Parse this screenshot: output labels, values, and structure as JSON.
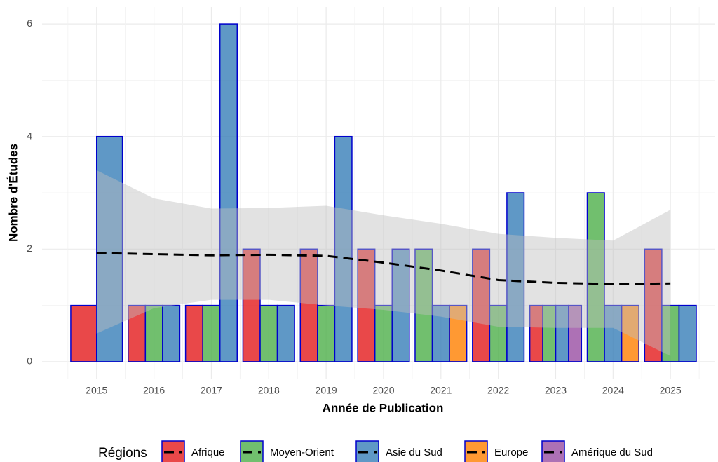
{
  "chart_data": {
    "type": "bar",
    "x_label": "Année de Publication",
    "y_label": "Nombre d'Études",
    "legend_title": "Régions",
    "legend": "bottom",
    "grid": true,
    "categories": [
      "2015",
      "2016",
      "2017",
      "2018",
      "2019",
      "2020",
      "2021",
      "2022",
      "2023",
      "2024",
      "2025"
    ],
    "x": [
      2015,
      2016,
      2017,
      2018,
      2019,
      2020,
      2021,
      2022,
      2023,
      2024,
      2025
    ],
    "xlim": [
      2014.05,
      2025.78
    ],
    "ylim": [
      -0.3,
      6.3
    ],
    "yticks": [
      0,
      2,
      4,
      6
    ],
    "bar_edge_color": "#0000cc",
    "series": [
      {
        "name": "Afrique",
        "color": "#e41a1c",
        "values": [
          1,
          1,
          1,
          2,
          2,
          2,
          null,
          2,
          1,
          null,
          2
        ]
      },
      {
        "name": "Moyen-Orient",
        "color": "#4daf4a",
        "values": [
          null,
          1,
          1,
          1,
          1,
          1,
          2,
          1,
          1,
          3,
          1
        ]
      },
      {
        "name": "Asie du Sud",
        "color": "#377eb8",
        "values": [
          4,
          1,
          6,
          1,
          4,
          2,
          1,
          3,
          1,
          1,
          1
        ]
      },
      {
        "name": "Europe",
        "color": "#ff7f00",
        "values": [
          null,
          null,
          null,
          null,
          null,
          null,
          1,
          null,
          null,
          1,
          null
        ]
      },
      {
        "name": "Amérique du Sud",
        "color": "#984ea3",
        "values": [
          null,
          null,
          null,
          null,
          null,
          null,
          null,
          null,
          1,
          null,
          null
        ]
      }
    ],
    "smooth": {
      "color": "#000000",
      "band_color": "#bfbfbf",
      "values": [
        1.93,
        1.91,
        1.89,
        1.9,
        1.88,
        1.76,
        1.62,
        1.45,
        1.4,
        1.38,
        1.39
      ],
      "lower": [
        0.5,
        0.95,
        1.1,
        1.1,
        1.0,
        0.92,
        0.8,
        0.62,
        0.6,
        0.6,
        0.1
      ],
      "upper": [
        3.4,
        2.9,
        2.72,
        2.73,
        2.77,
        2.6,
        2.45,
        2.27,
        2.2,
        2.15,
        2.7
      ]
    }
  }
}
